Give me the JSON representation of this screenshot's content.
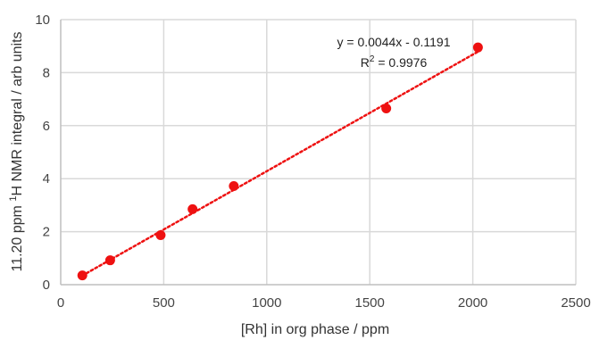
{
  "chart_data": {
    "type": "scatter",
    "xlabel": "[Rh] in org phase / ppm",
    "ylabel_prefix": "11.20 ppm ",
    "ylabel_sup": "1",
    "ylabel_suffix": "H NMR integral / arb units",
    "xlim": [
      0,
      2500
    ],
    "ylim": [
      0,
      10
    ],
    "xticks": [
      0,
      500,
      1000,
      1500,
      2000,
      2500
    ],
    "yticks": [
      0,
      2,
      4,
      6,
      8,
      10
    ],
    "grid": true,
    "legend": "none",
    "series": [
      {
        "color": "#ee1111",
        "marker": "circle",
        "x": [
          105,
          240,
          485,
          640,
          840,
          1580,
          2025
        ],
        "y": [
          0.35,
          0.92,
          1.87,
          2.85,
          3.72,
          6.65,
          8.95
        ]
      }
    ],
    "trendline": {
      "type": "linear",
      "slope": 0.0044,
      "intercept": -0.1191,
      "x_range": [
        105,
        2025
      ],
      "style": "dotted",
      "color": "#ee1111"
    },
    "annotations": {
      "equation": "y = 0.0044x - 0.1191",
      "r2_prefix": "R",
      "r2_sup": "2",
      "r2_suffix": " = 0.9976"
    }
  }
}
